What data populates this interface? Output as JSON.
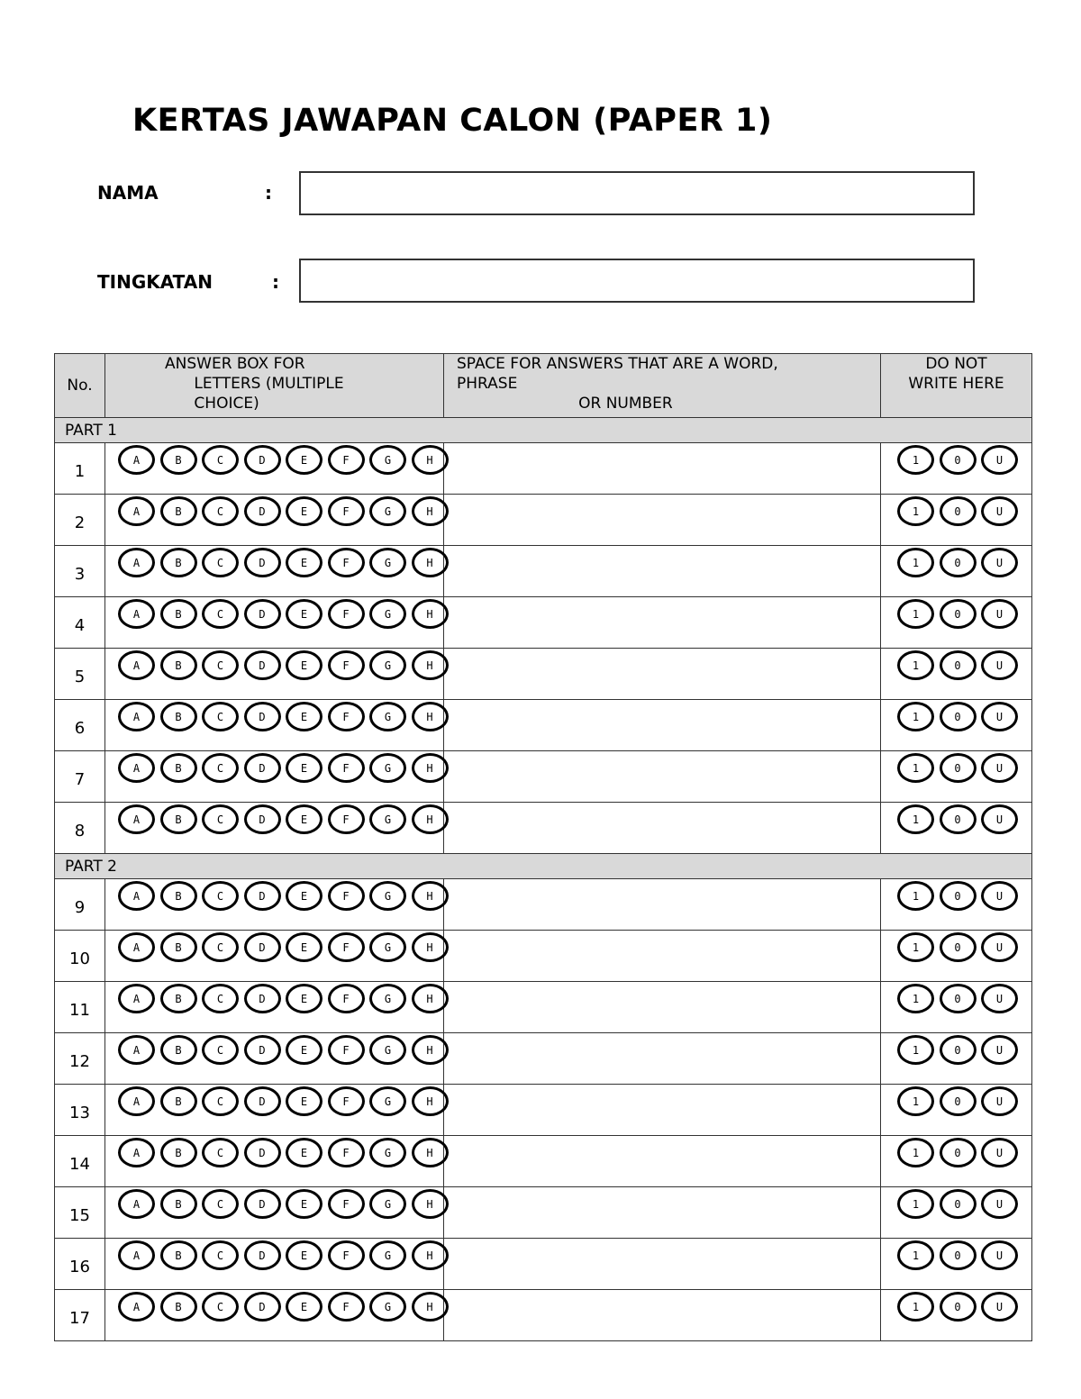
{
  "title": "KERTAS JAWAPAN CALON (PAPER 1)",
  "fields": [
    {
      "label": "NAMA",
      "colon": ":",
      "value": ""
    },
    {
      "label": "TINGKATAN",
      "colon": ":",
      "value": ""
    }
  ],
  "table": {
    "headers": {
      "no": "No.",
      "answer_box": "ANSWER BOX FOR\n      LETTERS (MULTIPLE\n      CHOICE)",
      "space": "SPACE FOR ANSWERS THAT ARE A WORD,\nPHRASE\n                         OR NUMBER",
      "do_not_write": "DO NOT\nWRITE HERE"
    },
    "choices": [
      "A",
      "B",
      "C",
      "D",
      "E",
      "F",
      "G",
      "H"
    ],
    "marks": [
      "1",
      "0",
      "U"
    ],
    "parts": [
      {
        "label": "PART 1",
        "questions": [
          "1",
          "2",
          "3",
          "4",
          "5",
          "6",
          "7",
          "8"
        ]
      },
      {
        "label": "PART 2",
        "questions": [
          "9",
          "10",
          "11",
          "12",
          "13",
          "14",
          "15",
          "16",
          "17"
        ]
      }
    ]
  }
}
